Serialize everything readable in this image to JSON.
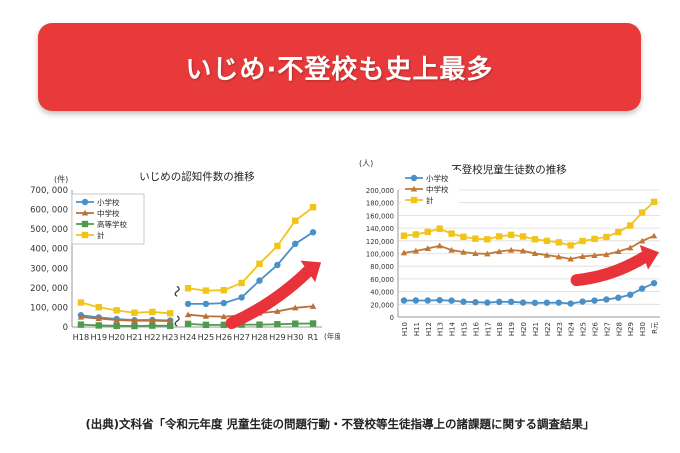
{
  "banner": {
    "title": "いじめ·不登校も史上最多"
  },
  "source": "(出典)文科省「令和元年度 児童生徒の問題行動・不登校等生徒指導上の諸課題に関する調査結果」",
  "chart_data": [
    {
      "type": "line",
      "title": "いじめの認知件数の推移",
      "ylabel": "(件)",
      "xlabel": "(年度)",
      "ylim": [
        0,
        700000
      ],
      "yticks": [
        0,
        100000,
        200000,
        300000,
        400000,
        500000,
        600000,
        700000
      ],
      "yticklabels": [
        "0",
        "100, 000",
        "200, 000",
        "300, 000",
        "400, 000",
        "500, 000",
        "600, 000",
        "700, 000"
      ],
      "categories": [
        "H18",
        "H19",
        "H20",
        "H21",
        "H22",
        "H23",
        "H24",
        "H25",
        "H26",
        "H27",
        "H28",
        "H29",
        "H30",
        "R1"
      ],
      "break_after_index": 6,
      "series": [
        {
          "name": "小学校",
          "color": "#4a90c8",
          "values": [
            60000,
            49000,
            41000,
            35000,
            36000,
            33000,
            118000,
            118000,
            122000,
            151000,
            237000,
            317000,
            425000,
            484000
          ]
        },
        {
          "name": "中学校",
          "color": "#b8703a",
          "values": [
            51000,
            43000,
            36000,
            32000,
            33000,
            30000,
            63000,
            55000,
            53000,
            59000,
            71000,
            80000,
            98000,
            106000
          ]
        },
        {
          "name": "高等学校",
          "color": "#4f9a4f",
          "values": [
            12000,
            8000,
            6000,
            5000,
            7000,
            6000,
            16000,
            11000,
            11000,
            12000,
            12000,
            14000,
            17000,
            18000
          ]
        },
        {
          "name": "計",
          "color": "#f2c418",
          "values": [
            125000,
            101000,
            85000,
            73000,
            77000,
            70000,
            198000,
            186000,
            188000,
            225000,
            323000,
            414000,
            543000,
            612000
          ]
        }
      ]
    },
    {
      "type": "line",
      "title": "不登校児童生徒数の推移",
      "ylabel": "(人)",
      "ylim": [
        0,
        200000
      ],
      "yticks": [
        0,
        20000,
        40000,
        60000,
        80000,
        100000,
        120000,
        140000,
        160000,
        180000,
        200000
      ],
      "yticklabels": [
        "0",
        "20,000",
        "40,000",
        "60,000",
        "80,000",
        "100,000",
        "120,000",
        "140,000",
        "160,000",
        "180,000",
        "200,000"
      ],
      "categories": [
        "H10",
        "H11",
        "H12",
        "H13",
        "H14",
        "H15",
        "H16",
        "H17",
        "H18",
        "H19",
        "H20",
        "H21",
        "H22",
        "H23",
        "H24",
        "H25",
        "H26",
        "H27",
        "H28",
        "H29",
        "H30",
        "R元"
      ],
      "series": [
        {
          "name": "小学校",
          "color": "#4a90c8",
          "values": [
            26000,
            26000,
            26000,
            26500,
            25800,
            24000,
            23300,
            22700,
            23800,
            23900,
            22700,
            22300,
            22500,
            22600,
            21200,
            24200,
            25900,
            27600,
            30400,
            35000,
            44800,
            53300
          ]
        },
        {
          "name": "中学校",
          "color": "#c07838",
          "values": [
            101000,
            104000,
            107900,
            112200,
            105400,
            102100,
            100000,
            99500,
            103100,
            105300,
            104200,
            100100,
            97400,
            94800,
            91400,
            95400,
            97000,
            98400,
            103200,
            108900,
            119700,
            127900
          ]
        },
        {
          "name": "計",
          "color": "#f2c418",
          "values": [
            128000,
            130000,
            134000,
            139000,
            131300,
            126200,
            123300,
            122300,
            126900,
            129300,
            126800,
            122400,
            119900,
            117500,
            112700,
            119600,
            122900,
            126000,
            133700,
            144000,
            164500,
            181300
          ]
        }
      ]
    }
  ]
}
